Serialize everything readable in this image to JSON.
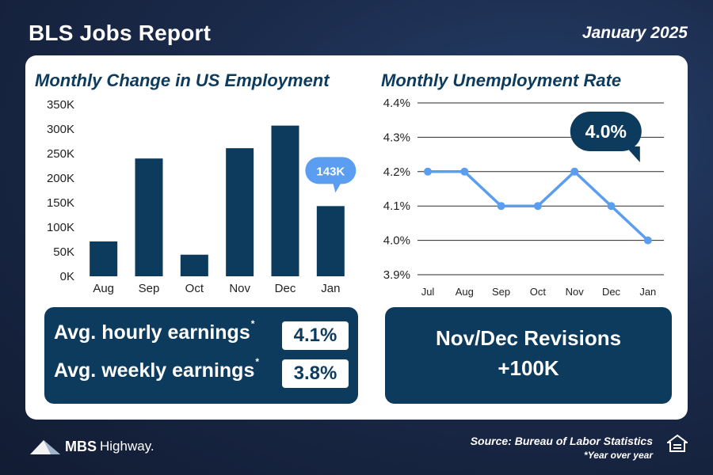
{
  "header": {
    "title": "BLS Jobs Report",
    "date": "January 2025"
  },
  "chart_data": [
    {
      "type": "bar",
      "title": "Monthly Change in US Employment",
      "categories": [
        "Aug",
        "Sep",
        "Oct",
        "Nov",
        "Dec",
        "Jan"
      ],
      "values": [
        71000,
        240000,
        44000,
        261000,
        307000,
        143000
      ],
      "yticks": [
        "0K",
        "50K",
        "100K",
        "150K",
        "200K",
        "250K",
        "300K",
        "350K"
      ],
      "ylim": [
        0,
        350000
      ],
      "callout": {
        "label": "143K",
        "category": "Jan"
      },
      "colors": {
        "bar": "#0d3b5e",
        "callout": "#5b9df0"
      }
    },
    {
      "type": "line",
      "title": "Monthly Unemployment Rate",
      "categories": [
        "Jul",
        "Aug",
        "Sep",
        "Oct",
        "Nov",
        "Dec",
        "Jan"
      ],
      "values": [
        4.2,
        4.2,
        4.1,
        4.1,
        4.2,
        4.1,
        4.0
      ],
      "yticks": [
        "3.9%",
        "4.0%",
        "4.1%",
        "4.2%",
        "4.3%",
        "4.4%"
      ],
      "ylim": [
        3.9,
        4.4
      ],
      "callout": {
        "label": "4.0%",
        "category": "Jan"
      },
      "colors": {
        "line": "#5b9df0",
        "callout": "#0d3b5e"
      }
    }
  ],
  "stats": [
    {
      "label": "Avg. hourly earnings",
      "mark": "*",
      "value": "4.1%"
    },
    {
      "label": "Avg. weekly earnings",
      "mark": "*",
      "value": "3.8%"
    }
  ],
  "revisions": {
    "line1": "Nov/Dec Revisions",
    "line2": "+100K"
  },
  "footer": {
    "logo_primary": "MBS",
    "logo_secondary": "Highway.",
    "source": "Source: Bureau of Labor Statistics",
    "footnote": "*Year over year"
  }
}
